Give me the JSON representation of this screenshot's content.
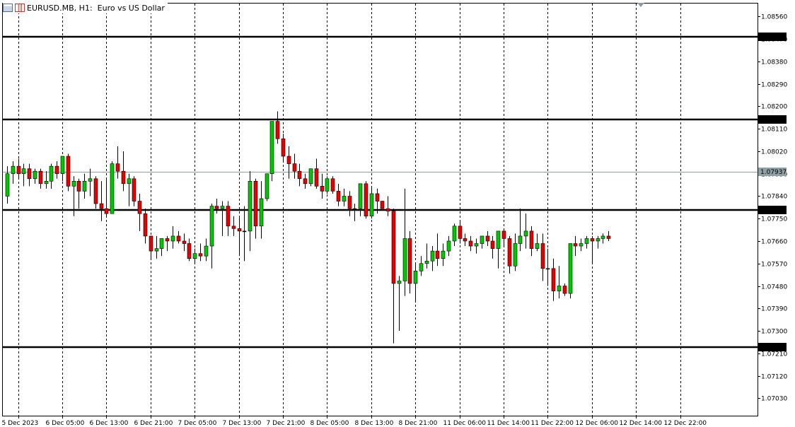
{
  "window": {
    "symbol": "EURUSD.MB",
    "timeframe": "H1",
    "description": "Euro vs US Dollar",
    "title": "EURUSD.MB, H1:  Euro vs US Dollar"
  },
  "colors": {
    "bull": "#00c800",
    "bear": "#e60000",
    "wick": "#000000",
    "background": "#ffffff",
    "grid": "#000000",
    "bid_line": "#8ea0a6",
    "hline": "#000000"
  },
  "chart_data": {
    "type": "candlestick",
    "title": "",
    "xlabel": "",
    "ylabel": "",
    "grid": true,
    "ylim": [
      1.0696,
      1.08615
    ],
    "y_ticks": [
      1.0856,
      1.0847,
      1.0838,
      1.0829,
      1.082,
      1.0811,
      1.0802,
      1.0793,
      1.0784,
      1.0775,
      1.0766,
      1.0757,
      1.0748,
      1.0739,
      1.073,
      1.0721,
      1.0712,
      1.0703
    ],
    "y_tick_labels": [
      "1.08560",
      "1.08470",
      "1.08380",
      "1.08290",
      "1.08200",
      "1.08110",
      "1.08020",
      "1.07930",
      "1.07840",
      "1.07750",
      "1.07660",
      "1.07570",
      "1.07480",
      "1.07390",
      "1.07300",
      "1.07210",
      "1.07120",
      "1.07030"
    ],
    "x_labels": [
      {
        "bar": 2,
        "label": "5 Dec 2023"
      },
      {
        "bar": 10,
        "label": "6 Dec 05:00"
      },
      {
        "bar": 18,
        "label": "6 Dec 13:00"
      },
      {
        "bar": 26,
        "label": "6 Dec 21:00"
      },
      {
        "bar": 34,
        "label": "7 Dec 05:00"
      },
      {
        "bar": 42,
        "label": "7 Dec 13:00"
      },
      {
        "bar": 50,
        "label": "7 Dec 21:00"
      },
      {
        "bar": 58,
        "label": "8 Dec 05:00"
      },
      {
        "bar": 66,
        "label": "8 Dec 13:00"
      },
      {
        "bar": 74,
        "label": "8 Dec 21:00"
      },
      {
        "bar": 82,
        "label": "11 Dec 06:00"
      },
      {
        "bar": 90,
        "label": "11 Dec 14:00"
      },
      {
        "bar": 98,
        "label": "11 Dec 22:00"
      },
      {
        "bar": 106,
        "label": "12 Dec 06:00"
      },
      {
        "bar": 114,
        "label": "12 Dec 14:00"
      },
      {
        "bar": 122,
        "label": "12 Dec 22:00"
      }
    ],
    "horizontal_lines": [
      {
        "price": 1.0848,
        "label": "1.08480"
      },
      {
        "price": 1.08147,
        "label": "1.08147"
      },
      {
        "price": 1.07786,
        "label": "1.07786"
      },
      {
        "price": 1.07235,
        "label": "1.07235"
      }
    ],
    "current_price": {
      "price": 1.07937,
      "label": "1.07937"
    },
    "candles": [
      {
        "o": 1.0784,
        "h": 1.0796,
        "l": 1.0781,
        "c": 1.0793
      },
      {
        "o": 1.0793,
        "h": 1.0798,
        "l": 1.0789,
        "c": 1.0796
      },
      {
        "o": 1.0796,
        "h": 1.0799,
        "l": 1.0791,
        "c": 1.0793
      },
      {
        "o": 1.0793,
        "h": 1.0797,
        "l": 1.0788,
        "c": 1.0795
      },
      {
        "o": 1.0795,
        "h": 1.0797,
        "l": 1.0788,
        "c": 1.0791
      },
      {
        "o": 1.0791,
        "h": 1.0795,
        "l": 1.0789,
        "c": 1.0794
      },
      {
        "o": 1.0794,
        "h": 1.0795,
        "l": 1.0787,
        "c": 1.0789
      },
      {
        "o": 1.0789,
        "h": 1.0794,
        "l": 1.0787,
        "c": 1.079
      },
      {
        "o": 1.079,
        "h": 1.0797,
        "l": 1.0787,
        "c": 1.0796
      },
      {
        "o": 1.0796,
        "h": 1.0798,
        "l": 1.0791,
        "c": 1.0793
      },
      {
        "o": 1.0793,
        "h": 1.08,
        "l": 1.079,
        "c": 1.08
      },
      {
        "o": 1.08,
        "h": 1.0801,
        "l": 1.0786,
        "c": 1.0788
      },
      {
        "o": 1.0788,
        "h": 1.0792,
        "l": 1.0776,
        "c": 1.079
      },
      {
        "o": 1.079,
        "h": 1.0791,
        "l": 1.0779,
        "c": 1.0786
      },
      {
        "o": 1.0786,
        "h": 1.0793,
        "l": 1.0783,
        "c": 1.079
      },
      {
        "o": 1.079,
        "h": 1.0795,
        "l": 1.0784,
        "c": 1.0791
      },
      {
        "o": 1.0791,
        "h": 1.0792,
        "l": 1.0779,
        "c": 1.0781
      },
      {
        "o": 1.0781,
        "h": 1.079,
        "l": 1.0774,
        "c": 1.0779
      },
      {
        "o": 1.0779,
        "h": 1.0791,
        "l": 1.0776,
        "c": 1.0777
      },
      {
        "o": 1.0777,
        "h": 1.0798,
        "l": 1.0777,
        "c": 1.0797
      },
      {
        "o": 1.0797,
        "h": 1.0804,
        "l": 1.0791,
        "c": 1.0794
      },
      {
        "o": 1.0794,
        "h": 1.0802,
        "l": 1.0786,
        "c": 1.0789
      },
      {
        "o": 1.0789,
        "h": 1.0793,
        "l": 1.078,
        "c": 1.0791
      },
      {
        "o": 1.0791,
        "h": 1.0792,
        "l": 1.078,
        "c": 1.0782
      },
      {
        "o": 1.0782,
        "h": 1.0785,
        "l": 1.077,
        "c": 1.0777
      },
      {
        "o": 1.0777,
        "h": 1.0779,
        "l": 1.0765,
        "c": 1.0768
      },
      {
        "o": 1.0768,
        "h": 1.0768,
        "l": 1.0759,
        "c": 1.0762
      },
      {
        "o": 1.0762,
        "h": 1.0768,
        "l": 1.0759,
        "c": 1.0763
      },
      {
        "o": 1.0763,
        "h": 1.0767,
        "l": 1.076,
        "c": 1.0767
      },
      {
        "o": 1.0767,
        "h": 1.0768,
        "l": 1.0762,
        "c": 1.0766
      },
      {
        "o": 1.0766,
        "h": 1.0772,
        "l": 1.0763,
        "c": 1.0768
      },
      {
        "o": 1.0768,
        "h": 1.077,
        "l": 1.0765,
        "c": 1.0766
      },
      {
        "o": 1.0766,
        "h": 1.0769,
        "l": 1.0762,
        "c": 1.0765
      },
      {
        "o": 1.0765,
        "h": 1.0767,
        "l": 1.0758,
        "c": 1.0759
      },
      {
        "o": 1.0759,
        "h": 1.0763,
        "l": 1.0757,
        "c": 1.0761
      },
      {
        "o": 1.0761,
        "h": 1.0765,
        "l": 1.0758,
        "c": 1.076
      },
      {
        "o": 1.076,
        "h": 1.0767,
        "l": 1.0758,
        "c": 1.0764
      },
      {
        "o": 1.0764,
        "h": 1.0781,
        "l": 1.0755,
        "c": 1.078
      },
      {
        "o": 1.078,
        "h": 1.0783,
        "l": 1.0777,
        "c": 1.0779
      },
      {
        "o": 1.0779,
        "h": 1.0782,
        "l": 1.0768,
        "c": 1.078
      },
      {
        "o": 1.078,
        "h": 1.0782,
        "l": 1.0768,
        "c": 1.0772
      },
      {
        "o": 1.0772,
        "h": 1.0776,
        "l": 1.0768,
        "c": 1.0771
      },
      {
        "o": 1.0771,
        "h": 1.0776,
        "l": 1.076,
        "c": 1.077
      },
      {
        "o": 1.077,
        "h": 1.078,
        "l": 1.0758,
        "c": 1.077
      },
      {
        "o": 1.077,
        "h": 1.0794,
        "l": 1.0762,
        "c": 1.079
      },
      {
        "o": 1.079,
        "h": 1.0791,
        "l": 1.0767,
        "c": 1.0772
      },
      {
        "o": 1.0772,
        "h": 1.079,
        "l": 1.0767,
        "c": 1.0783
      },
      {
        "o": 1.0783,
        "h": 1.0793,
        "l": 1.0782,
        "c": 1.0793
      },
      {
        "o": 1.0793,
        "h": 1.0814,
        "l": 1.079,
        "c": 1.0814
      },
      {
        "o": 1.0814,
        "h": 1.0818,
        "l": 1.0805,
        "c": 1.0807
      },
      {
        "o": 1.0807,
        "h": 1.0809,
        "l": 1.0798,
        "c": 1.08
      },
      {
        "o": 1.08,
        "h": 1.0804,
        "l": 1.0791,
        "c": 1.0797
      },
      {
        "o": 1.0797,
        "h": 1.0801,
        "l": 1.0791,
        "c": 1.0794
      },
      {
        "o": 1.0794,
        "h": 1.0797,
        "l": 1.0788,
        "c": 1.0791
      },
      {
        "o": 1.0791,
        "h": 1.0793,
        "l": 1.0787,
        "c": 1.0789
      },
      {
        "o": 1.0789,
        "h": 1.0795,
        "l": 1.0788,
        "c": 1.0795
      },
      {
        "o": 1.0795,
        "h": 1.0799,
        "l": 1.0787,
        "c": 1.0788
      },
      {
        "o": 1.0788,
        "h": 1.0793,
        "l": 1.0783,
        "c": 1.0786
      },
      {
        "o": 1.0786,
        "h": 1.0792,
        "l": 1.0785,
        "c": 1.0791
      },
      {
        "o": 1.0791,
        "h": 1.0792,
        "l": 1.0785,
        "c": 1.0786
      },
      {
        "o": 1.0786,
        "h": 1.0789,
        "l": 1.078,
        "c": 1.0782
      },
      {
        "o": 1.0782,
        "h": 1.0787,
        "l": 1.078,
        "c": 1.0784
      },
      {
        "o": 1.0784,
        "h": 1.0786,
        "l": 1.0776,
        "c": 1.0779
      },
      {
        "o": 1.0779,
        "h": 1.0781,
        "l": 1.0774,
        "c": 1.0779
      },
      {
        "o": 1.0779,
        "h": 1.0788,
        "l": 1.0776,
        "c": 1.0789
      },
      {
        "o": 1.0789,
        "h": 1.079,
        "l": 1.0775,
        "c": 1.0776
      },
      {
        "o": 1.0776,
        "h": 1.0788,
        "l": 1.0775,
        "c": 1.0785
      },
      {
        "o": 1.0785,
        "h": 1.0787,
        "l": 1.0777,
        "c": 1.0782
      },
      {
        "o": 1.0782,
        "h": 1.0782,
        "l": 1.0779,
        "c": 1.0779
      },
      {
        "o": 1.0779,
        "h": 1.0784,
        "l": 1.0776,
        "c": 1.0778
      },
      {
        "o": 1.0778,
        "h": 1.0779,
        "l": 1.0725,
        "c": 1.0749
      },
      {
        "o": 1.0749,
        "h": 1.0752,
        "l": 1.073,
        "c": 1.075
      },
      {
        "o": 1.075,
        "h": 1.0787,
        "l": 1.0744,
        "c": 1.0767
      },
      {
        "o": 1.0767,
        "h": 1.077,
        "l": 1.0745,
        "c": 1.0749
      },
      {
        "o": 1.0749,
        "h": 1.0757,
        "l": 1.0742,
        "c": 1.0754
      },
      {
        "o": 1.0754,
        "h": 1.076,
        "l": 1.0752,
        "c": 1.0757
      },
      {
        "o": 1.0757,
        "h": 1.0765,
        "l": 1.0755,
        "c": 1.0758
      },
      {
        "o": 1.0758,
        "h": 1.0764,
        "l": 1.0754,
        "c": 1.0762
      },
      {
        "o": 1.0762,
        "h": 1.0769,
        "l": 1.0756,
        "c": 1.0759
      },
      {
        "o": 1.0759,
        "h": 1.0765,
        "l": 1.0756,
        "c": 1.0762
      },
      {
        "o": 1.0762,
        "h": 1.0768,
        "l": 1.076,
        "c": 1.0766
      },
      {
        "o": 1.0766,
        "h": 1.0773,
        "l": 1.0764,
        "c": 1.0772
      },
      {
        "o": 1.0772,
        "h": 1.0774,
        "l": 1.0765,
        "c": 1.0767
      },
      {
        "o": 1.0767,
        "h": 1.0769,
        "l": 1.0764,
        "c": 1.0766
      },
      {
        "o": 1.0766,
        "h": 1.0768,
        "l": 1.0762,
        "c": 1.0764
      },
      {
        "o": 1.0764,
        "h": 1.0767,
        "l": 1.0761,
        "c": 1.0765
      },
      {
        "o": 1.0765,
        "h": 1.0768,
        "l": 1.0763,
        "c": 1.0768
      },
      {
        "o": 1.0768,
        "h": 1.077,
        "l": 1.0764,
        "c": 1.0766
      },
      {
        "o": 1.0766,
        "h": 1.0768,
        "l": 1.0759,
        "c": 1.0763
      },
      {
        "o": 1.0763,
        "h": 1.077,
        "l": 1.0755,
        "c": 1.077
      },
      {
        "o": 1.077,
        "h": 1.0771,
        "l": 1.0764,
        "c": 1.0767
      },
      {
        "o": 1.0767,
        "h": 1.0768,
        "l": 1.0753,
        "c": 1.0756
      },
      {
        "o": 1.0756,
        "h": 1.0769,
        "l": 1.0754,
        "c": 1.0765
      },
      {
        "o": 1.0765,
        "h": 1.0779,
        "l": 1.0762,
        "c": 1.0768
      },
      {
        "o": 1.0768,
        "h": 1.0777,
        "l": 1.0763,
        "c": 1.077
      },
      {
        "o": 1.077,
        "h": 1.0772,
        "l": 1.076,
        "c": 1.0763
      },
      {
        "o": 1.0763,
        "h": 1.0769,
        "l": 1.0762,
        "c": 1.0765
      },
      {
        "o": 1.0765,
        "h": 1.0769,
        "l": 1.075,
        "c": 1.0755
      },
      {
        "o": 1.0755,
        "h": 1.0763,
        "l": 1.0748,
        "c": 1.0755
      },
      {
        "o": 1.0755,
        "h": 1.0759,
        "l": 1.0742,
        "c": 1.0746
      },
      {
        "o": 1.0746,
        "h": 1.0756,
        "l": 1.0743,
        "c": 1.0748
      },
      {
        "o": 1.0748,
        "h": 1.0749,
        "l": 1.0744,
        "c": 1.0745
      },
      {
        "o": 1.0745,
        "h": 1.0765,
        "l": 1.0743,
        "c": 1.0765
      },
      {
        "o": 1.0765,
        "h": 1.0768,
        "l": 1.076,
        "c": 1.0764
      },
      {
        "o": 1.0764,
        "h": 1.0767,
        "l": 1.0762,
        "c": 1.0765
      },
      {
        "o": 1.0765,
        "h": 1.0768,
        "l": 1.0763,
        "c": 1.0767
      },
      {
        "o": 1.0767,
        "h": 1.0768,
        "l": 1.0757,
        "c": 1.0766
      },
      {
        "o": 1.0766,
        "h": 1.0768,
        "l": 1.0763,
        "c": 1.0767
      },
      {
        "o": 1.0767,
        "h": 1.0769,
        "l": 1.0765,
        "c": 1.0768
      },
      {
        "o": 1.0768,
        "h": 1.077,
        "l": 1.0766,
        "c": 1.0767
      }
    ],
    "note": ""
  }
}
